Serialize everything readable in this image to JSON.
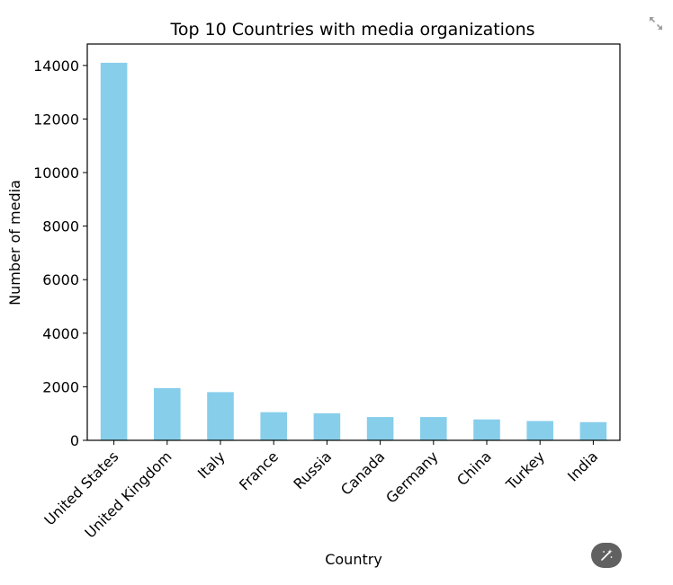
{
  "chart_data": {
    "type": "bar",
    "title": "Top 10 Countries with media organizations",
    "xlabel": "Country",
    "ylabel": "Number of media",
    "categories": [
      "United States",
      "United Kingdom",
      "Italy",
      "France",
      "Russia",
      "Canada",
      "Germany",
      "China",
      "Turkey",
      "India"
    ],
    "values": [
      14100,
      1950,
      1800,
      1050,
      1010,
      870,
      870,
      780,
      720,
      680
    ],
    "ylim": [
      0,
      14800
    ],
    "yticks": [
      0,
      2000,
      4000,
      6000,
      8000,
      10000,
      12000,
      14000
    ],
    "grid": false,
    "bar_color": "#87ceeb",
    "x_tick_rotation_deg": 45
  },
  "controls": {
    "expand_icon": "expand-arrows-icon",
    "magic_icon": "magic-wand-icon",
    "magic_button_color": "#616161"
  }
}
